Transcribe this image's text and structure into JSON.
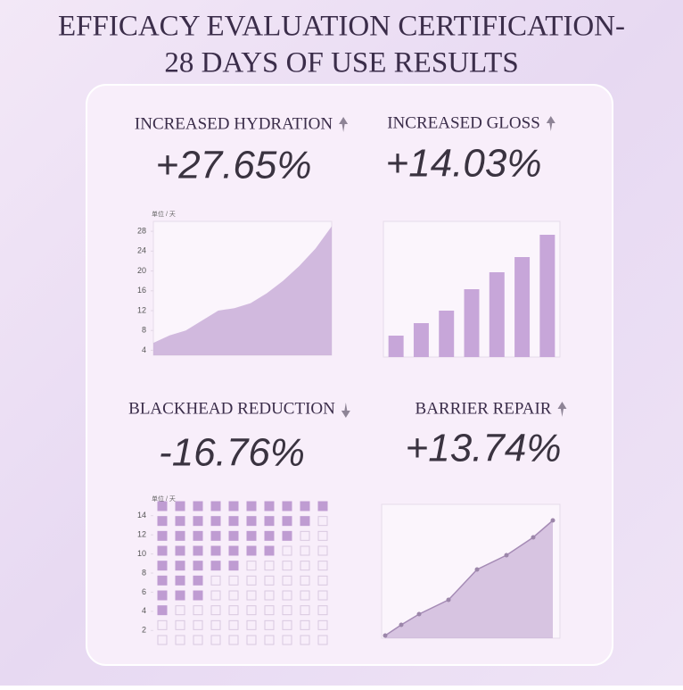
{
  "header": {
    "lines": [
      "EFFICACY EVALUATION CERTIFICATION-",
      "28 DAYS OF USE RESULTS"
    ]
  },
  "chart_data": [
    {
      "type": "area",
      "title": "INCREASED HYDRATION",
      "subtitle": "+27.65%",
      "trend": "up",
      "ylabel": "单位 / 天",
      "categories": [
        null,
        null,
        null,
        null,
        null,
        null,
        null,
        null,
        null,
        null,
        null,
        null
      ],
      "values": [
        5.5,
        7,
        8,
        10,
        12,
        12.5,
        13.5,
        15.5,
        18,
        21,
        24.5,
        29
      ],
      "color": "#c9aed8",
      "ylim": [
        3,
        30
      ],
      "yticks": [
        4,
        8,
        12,
        16,
        20,
        24,
        28
      ],
      "grid": true
    },
    {
      "type": "bar",
      "title": "INCREASED GLOSS",
      "subtitle": "+14.03%",
      "trend": "up",
      "categories": [
        null,
        null,
        null,
        null,
        null,
        null,
        null
      ],
      "values": [
        24,
        38,
        52,
        76,
        95,
        112,
        137
      ],
      "color": "#c7a6d9",
      "ylim": [
        0,
        152
      ],
      "grid": true
    },
    {
      "type": "waffle",
      "title": "BLACKHEAD REDUCTION",
      "subtitle": "-16.76%",
      "trend": "down",
      "ylabel": "单位 / 天",
      "categories": [
        null,
        null,
        null,
        null,
        null,
        null,
        null,
        null,
        null,
        null
      ],
      "values": [
        8,
        7,
        7,
        5,
        5,
        4,
        4,
        3,
        2,
        1
      ],
      "cells_per_column": 10,
      "color": "#bf9cd2",
      "ylim": [
        1,
        15
      ],
      "yticks": [
        2,
        4,
        6,
        8,
        10,
        12,
        14
      ]
    },
    {
      "type": "line",
      "title": "BARRIER REPAIR",
      "subtitle": "+13.74%",
      "trend": "up",
      "x": [
        4,
        22,
        42,
        75,
        107,
        140,
        170,
        192
      ],
      "values": [
        3,
        15,
        27,
        43,
        77,
        93,
        113,
        132
      ],
      "color": "#b99acb",
      "xlim": [
        0,
        200
      ],
      "ylim": [
        0,
        150
      ],
      "grid": true
    }
  ]
}
